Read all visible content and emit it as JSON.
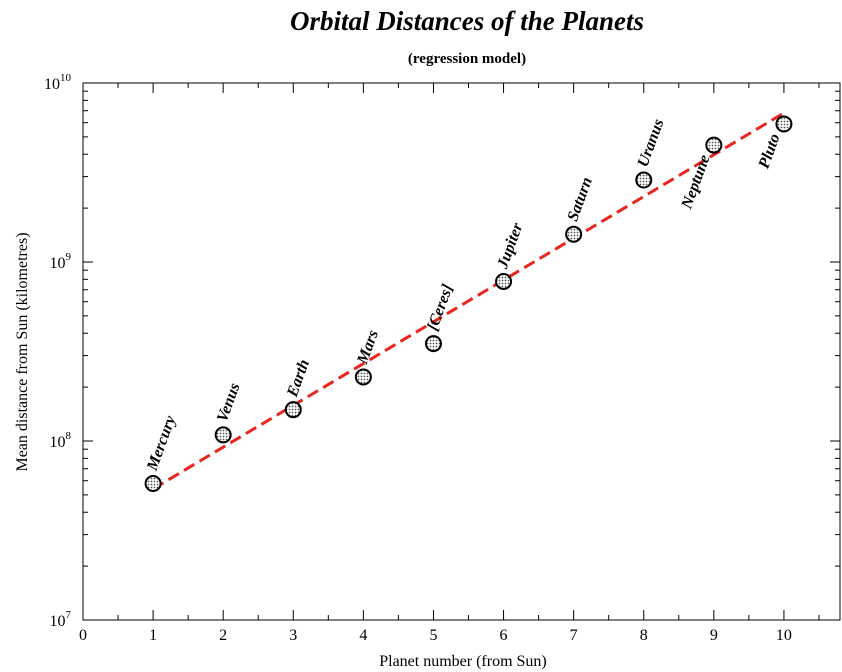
{
  "chart_data": {
    "type": "scatter",
    "title": "Orbital Distances of the Planets",
    "subtitle": "(regression model)",
    "xlabel": "Planet number (from Sun)",
    "ylabel": "Mean distance from Sun (kilometres)",
    "xlim": [
      0,
      10.8
    ],
    "ylim": [
      10000000,
      10000000000
    ],
    "yscale": "log",
    "grid": false,
    "legend": "none",
    "x_ticks": [
      0,
      1,
      2,
      3,
      4,
      5,
      6,
      7,
      8,
      9,
      10
    ],
    "y_ticks": [
      {
        "value": 10000000,
        "base": "10",
        "exp": "7"
      },
      {
        "value": 100000000,
        "base": "10",
        "exp": "8"
      },
      {
        "value": 1000000000,
        "base": "10",
        "exp": "9"
      },
      {
        "value": 10000000000,
        "base": "10",
        "exp": "10"
      }
    ],
    "points": [
      {
        "x": 1,
        "y": 57900000,
        "label": "Mercury"
      },
      {
        "x": 2,
        "y": 108200000,
        "label": "Venus"
      },
      {
        "x": 3,
        "y": 149600000,
        "label": "Earth"
      },
      {
        "x": 4,
        "y": 227900000,
        "label": "Mars"
      },
      {
        "x": 5,
        "y": 350000000,
        "label": "[Ceres]"
      },
      {
        "x": 6,
        "y": 778500000,
        "label": "Jupiter"
      },
      {
        "x": 7,
        "y": 1430000000,
        "label": "Saturn"
      },
      {
        "x": 8,
        "y": 2870000000,
        "label": "Uranus"
      },
      {
        "x": 9,
        "y": 4500000000,
        "label": "Neptune"
      },
      {
        "x": 10,
        "y": 5900000000,
        "label": "Pluto"
      }
    ],
    "regression": {
      "x": [
        1,
        10
      ],
      "y": [
        54000000,
        6800000000
      ]
    },
    "colors": {
      "regression": "#e8261e",
      "marker_fill": "#b8b8b8",
      "axis": "#000000"
    }
  }
}
